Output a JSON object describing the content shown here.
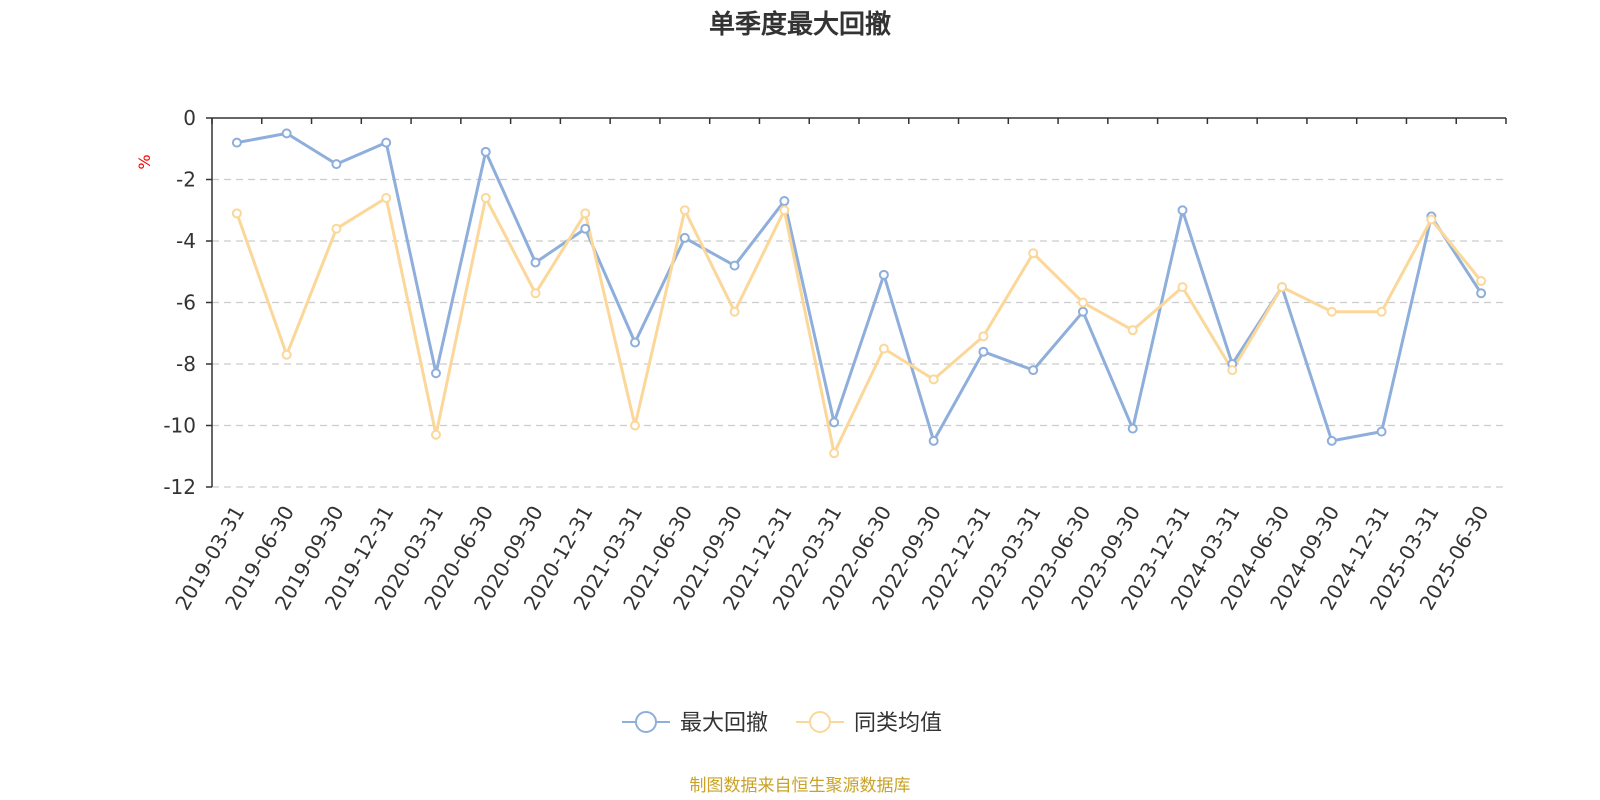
{
  "chart_data": {
    "type": "line",
    "title": "单季度最大回撤",
    "ylabel": "%",
    "xlabel": "",
    "ylim": [
      -12,
      0
    ],
    "yticks": [
      0,
      -2,
      -4,
      -6,
      -8,
      -10,
      -12
    ],
    "grid": true,
    "legend_position": "bottom",
    "categories": [
      "2019-03-31",
      "2019-06-30",
      "2019-09-30",
      "2019-12-31",
      "2020-03-31",
      "2020-06-30",
      "2020-09-30",
      "2020-12-31",
      "2021-03-31",
      "2021-06-30",
      "2021-09-30",
      "2021-12-31",
      "2022-03-31",
      "2022-06-30",
      "2022-09-30",
      "2022-12-31",
      "2023-03-31",
      "2023-06-30",
      "2023-09-30",
      "2023-12-31",
      "2024-03-31",
      "2024-06-30",
      "2024-09-30",
      "2024-12-31",
      "2025-03-31",
      "2025-06-30"
    ],
    "series": [
      {
        "name": "最大回撤",
        "color": "#8eaedb",
        "values": [
          -0.8,
          -0.5,
          -1.5,
          -0.8,
          -8.3,
          -1.1,
          -4.7,
          -3.6,
          -7.3,
          -3.9,
          -4.8,
          -2.7,
          -9.9,
          -5.1,
          -10.5,
          -7.6,
          -8.2,
          -6.3,
          -10.1,
          -3.0,
          -8.0,
          -5.5,
          -10.5,
          -10.2,
          -3.2,
          -5.7
        ]
      },
      {
        "name": "同类均值",
        "color": "#fbd79a",
        "values": [
          -3.1,
          -7.7,
          -3.6,
          -2.6,
          -10.3,
          -2.6,
          -5.7,
          -3.1,
          -10.0,
          -3.0,
          -6.3,
          -3.0,
          -10.9,
          -7.5,
          -8.5,
          -7.1,
          -4.4,
          -6.0,
          -6.9,
          -5.5,
          -8.2,
          -5.5,
          -6.3,
          -6.3,
          -3.3,
          -5.3
        ]
      }
    ]
  },
  "footer": {
    "source": "制图数据来自恒生聚源数据库"
  }
}
